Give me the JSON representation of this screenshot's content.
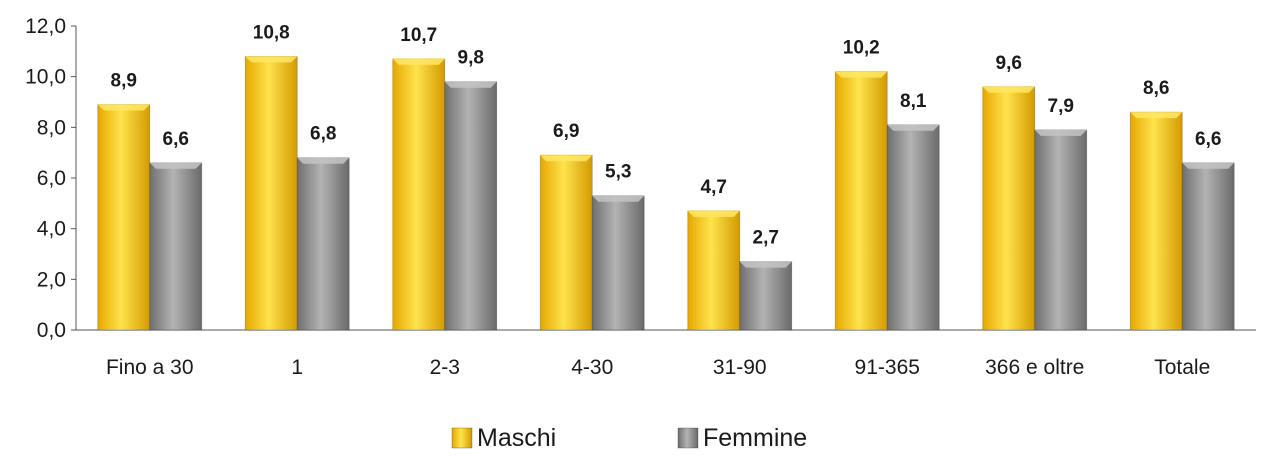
{
  "chart_data": {
    "type": "bar",
    "categories": [
      "Fino a 30",
      "1",
      "2-3",
      "4-30",
      "31-90",
      "91-365",
      "366 e oltre",
      "Totale"
    ],
    "series": [
      {
        "name": "Maschi",
        "values": [
          8.9,
          10.8,
          10.7,
          6.9,
          4.7,
          10.2,
          9.6,
          8.6
        ],
        "labels": [
          "8,9",
          "10,8",
          "10,7",
          "6,9",
          "4,7",
          "10,2",
          "9,6",
          "8,6"
        ],
        "color": "#f2c500"
      },
      {
        "name": "Femmine",
        "values": [
          6.6,
          6.8,
          9.8,
          5.3,
          2.7,
          8.1,
          7.9,
          6.6
        ],
        "labels": [
          "6,6",
          "6,8",
          "9,8",
          "5,3",
          "2,7",
          "8,1",
          "7,9",
          "6,6"
        ],
        "color": "#8c8c8c"
      }
    ],
    "yticks": [
      "0,0",
      "2,0",
      "4,0",
      "6,0",
      "8,0",
      "10,0",
      "12,0"
    ],
    "ylim": [
      0,
      12
    ],
    "grid": false,
    "legend_position": "bottom"
  }
}
